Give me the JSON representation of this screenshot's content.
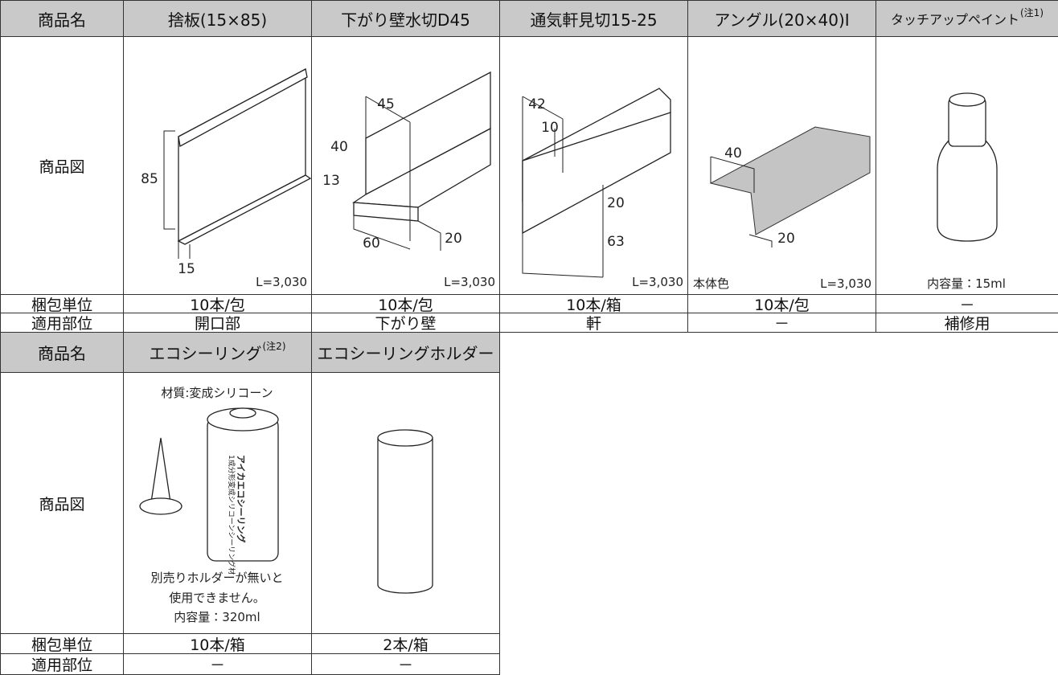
{
  "tables": [
    {
      "row_labels": [
        "商品名",
        "商品図",
        "梱包単位",
        "適用部位"
      ],
      "products": [
        {
          "name": "捨板(15×85)",
          "dims": [
            "85",
            "15"
          ],
          "captions": [
            "L=3,030"
          ],
          "packing": "10本/包",
          "usage": "開口部"
        },
        {
          "name": "下がり壁水切D45",
          "dims": [
            "45",
            "40",
            "13",
            "60",
            "20"
          ],
          "captions": [
            "L=3,030"
          ],
          "packing": "10本/包",
          "usage": "下がり壁"
        },
        {
          "name": "通気軒見切15-25",
          "dims": [
            "42",
            "10",
            "20",
            "63"
          ],
          "captions": [
            "L=3,030"
          ],
          "packing": "10本/箱",
          "usage": "軒"
        },
        {
          "name": "アングル(20×40)I",
          "dims": [
            "40",
            "20"
          ],
          "captions": [
            "本体色",
            "L=3,030"
          ],
          "packing": "10本/包",
          "usage": "－"
        },
        {
          "name": "タッチアップペイント",
          "note": "(注1)",
          "captions": [
            "内容量：15ml"
          ],
          "packing": "－",
          "usage": "補修用"
        }
      ]
    },
    {
      "row_labels": [
        "商品名",
        "商品図",
        "梱包単位",
        "適用部位"
      ],
      "products": [
        {
          "name": "エコシーリング",
          "note": "(注2)",
          "captions": [
            "材質:変成シリコーン",
            "別売りホルダーが無いと",
            "使用できません。",
            "内容量：320ml"
          ],
          "product_labels": [
            "1成分形変成シリコーンシーリング材",
            "アイカエコシーリング"
          ],
          "packing": "10本/箱",
          "usage": "－"
        },
        {
          "name": "エコシーリングホルダー",
          "packing": "2本/箱",
          "usage": "－"
        }
      ]
    }
  ]
}
